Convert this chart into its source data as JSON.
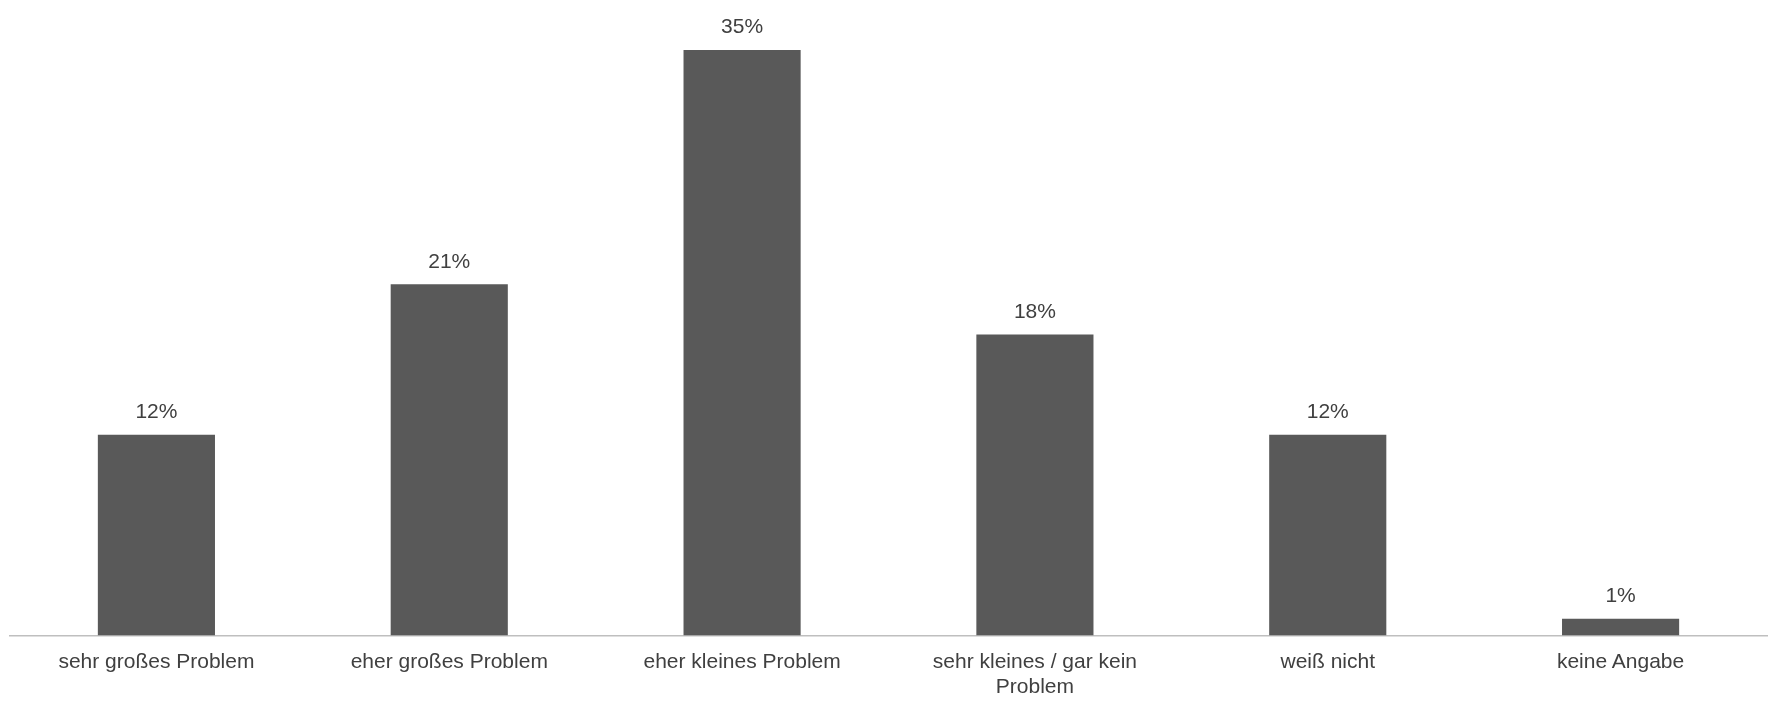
{
  "chart_data": {
    "type": "bar",
    "categories": [
      "sehr großes Problem",
      "eher großes Problem",
      "eher kleines Problem",
      "sehr kleines / gar kein Problem",
      "weiß nicht",
      "keine Angabe"
    ],
    "values": [
      12,
      21,
      35,
      18,
      12,
      1
    ],
    "value_labels": [
      "12%",
      "21%",
      "35%",
      "18%",
      "12%",
      "1%"
    ],
    "color": "#595959",
    "grid": false,
    "legend": false
  }
}
